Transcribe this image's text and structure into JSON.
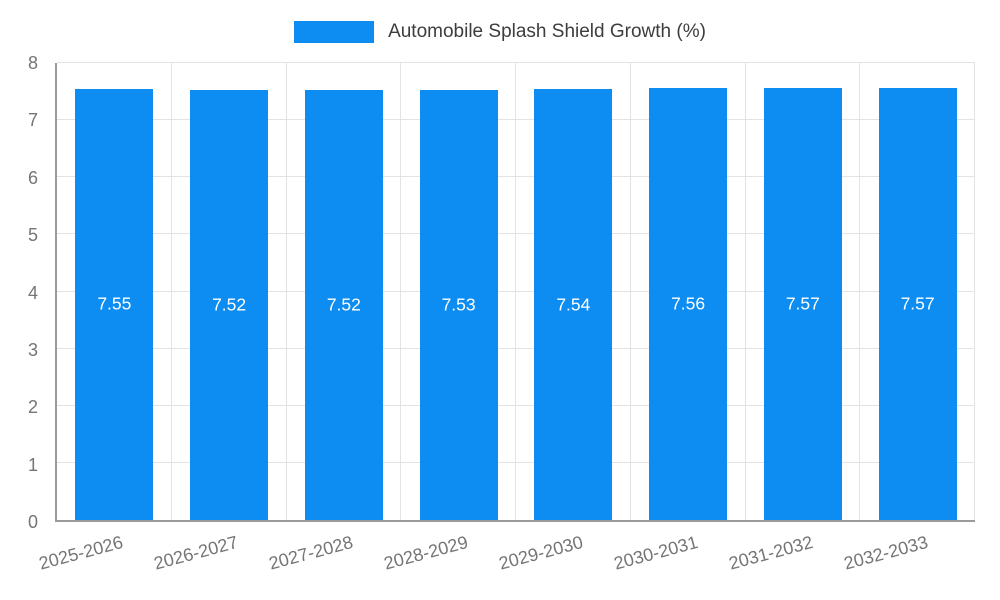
{
  "chart_data": {
    "type": "bar",
    "title": "Automobile Splash Shield Growth (%)",
    "categories": [
      "2025-2026",
      "2026-2027",
      "2027-2028",
      "2028-2029",
      "2029-2030",
      "2030-2031",
      "2031-2032",
      "2032-2033"
    ],
    "values": [
      7.55,
      7.52,
      7.52,
      7.53,
      7.54,
      7.56,
      7.57,
      7.57
    ],
    "xlabel": "",
    "ylabel": "",
    "ylim": [
      0,
      8
    ],
    "yticks": [
      0,
      1,
      2,
      3,
      4,
      5,
      6,
      7,
      8
    ],
    "grid": true,
    "legend_position": "top-center",
    "legend": [
      {
        "label": "Automobile Splash Shield Growth (%)",
        "color": "#0d8df2"
      }
    ],
    "colors": {
      "bar": "#0d8df2",
      "grid": "#e3e3e3",
      "axis": "#9a9a9a",
      "tick_text": "#757575",
      "title_text": "#3d3d3d",
      "bar_label": "#ffffff"
    }
  }
}
